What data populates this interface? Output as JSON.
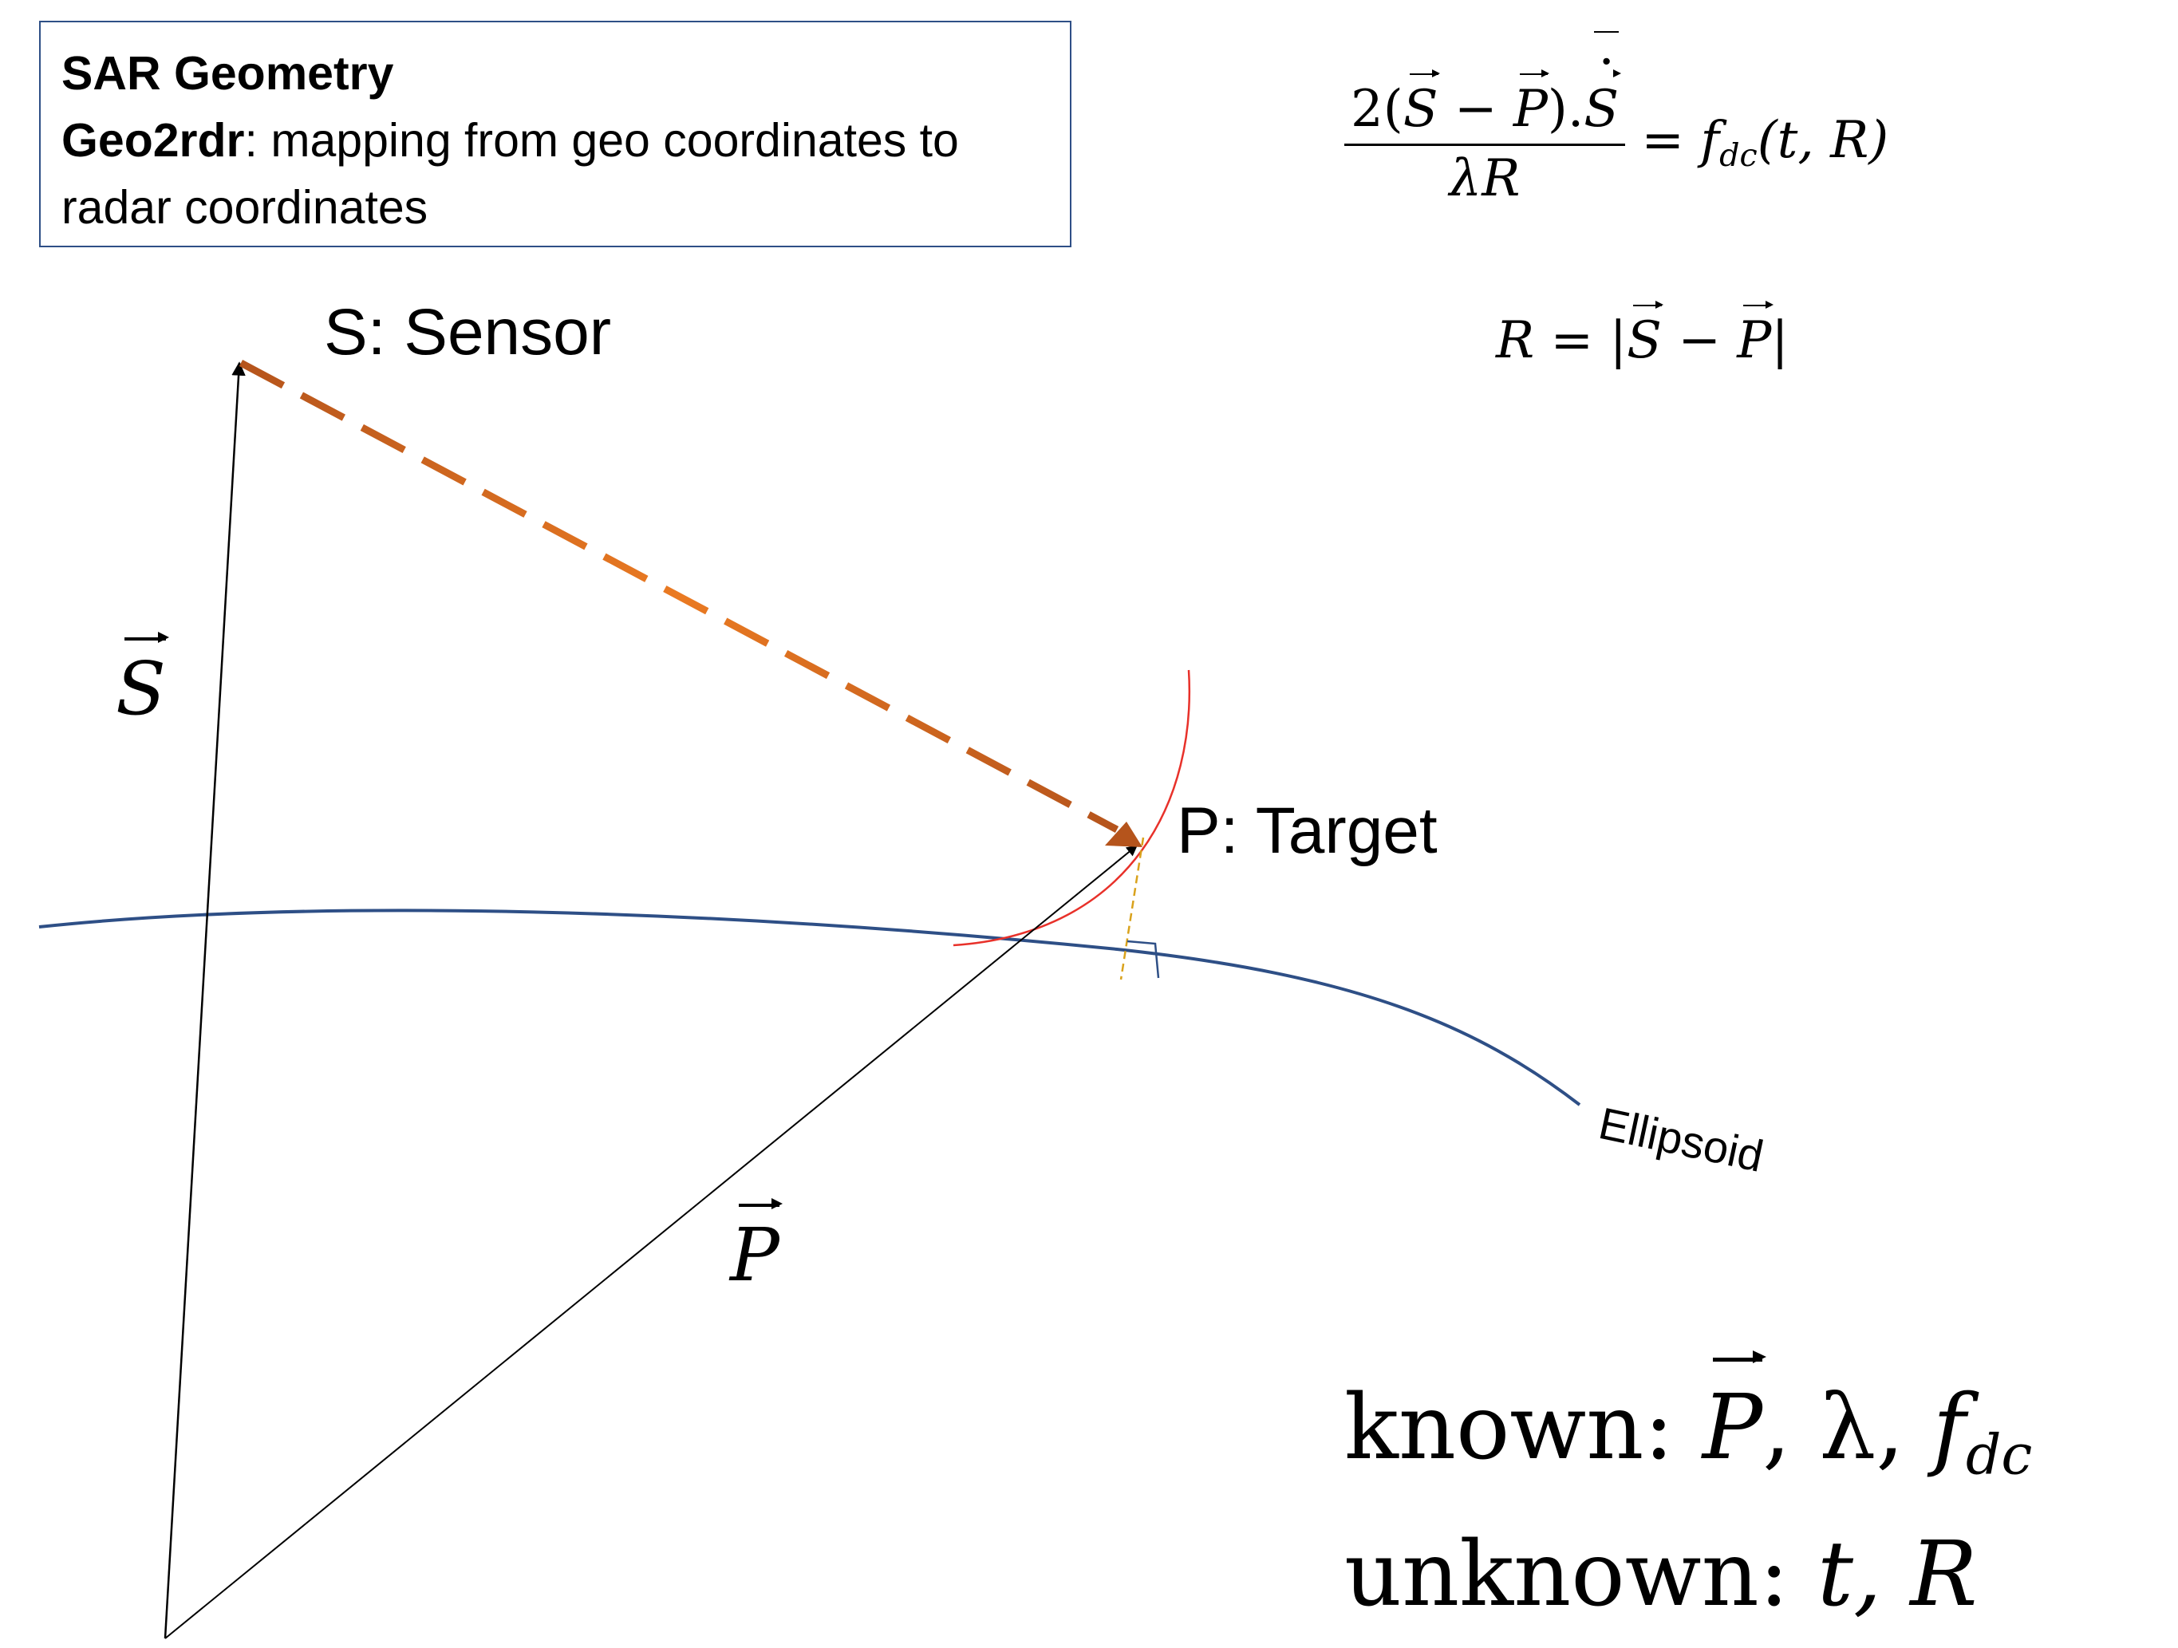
{
  "info_box": {
    "title": "SAR Geometry",
    "subtitle_bold": "Geo2rdr",
    "subtitle_rest": ": mapping from geo coordinates to",
    "subtitle_line2": "radar coordinates"
  },
  "labels": {
    "sensor": "S: Sensor",
    "target": "P: Target",
    "ellipsoid": "Ellipsoid",
    "vec_s": "S",
    "vec_p": "P"
  },
  "equations": {
    "doppler_num_prefix": "2(",
    "doppler_s": "S",
    "doppler_minus": " − ",
    "doppler_p": "P",
    "doppler_dot": ").",
    "doppler_sdot": "S",
    "doppler_den": "λR",
    "doppler_equals": " = ",
    "doppler_rhs_f": "f",
    "doppler_rhs_sub": "dc",
    "doppler_rhs_args": "(t, R)",
    "range_lhs": "R = |",
    "range_s": "S",
    "range_minus": " − ",
    "range_p": "P",
    "range_close": "|"
  },
  "known": {
    "known_label": "known: ",
    "known_p": "P",
    "known_rest": ", λ, ",
    "known_f": "f",
    "known_sub": "dc",
    "unknown_label": "unknown: ",
    "unknown_rest": "t, R"
  },
  "colors": {
    "ellipsoid": "#2e4f86",
    "slant_range": "#e07a1f",
    "range_arc": "#e8312a",
    "normal": "#d9a21c",
    "vectors": "#000000"
  }
}
